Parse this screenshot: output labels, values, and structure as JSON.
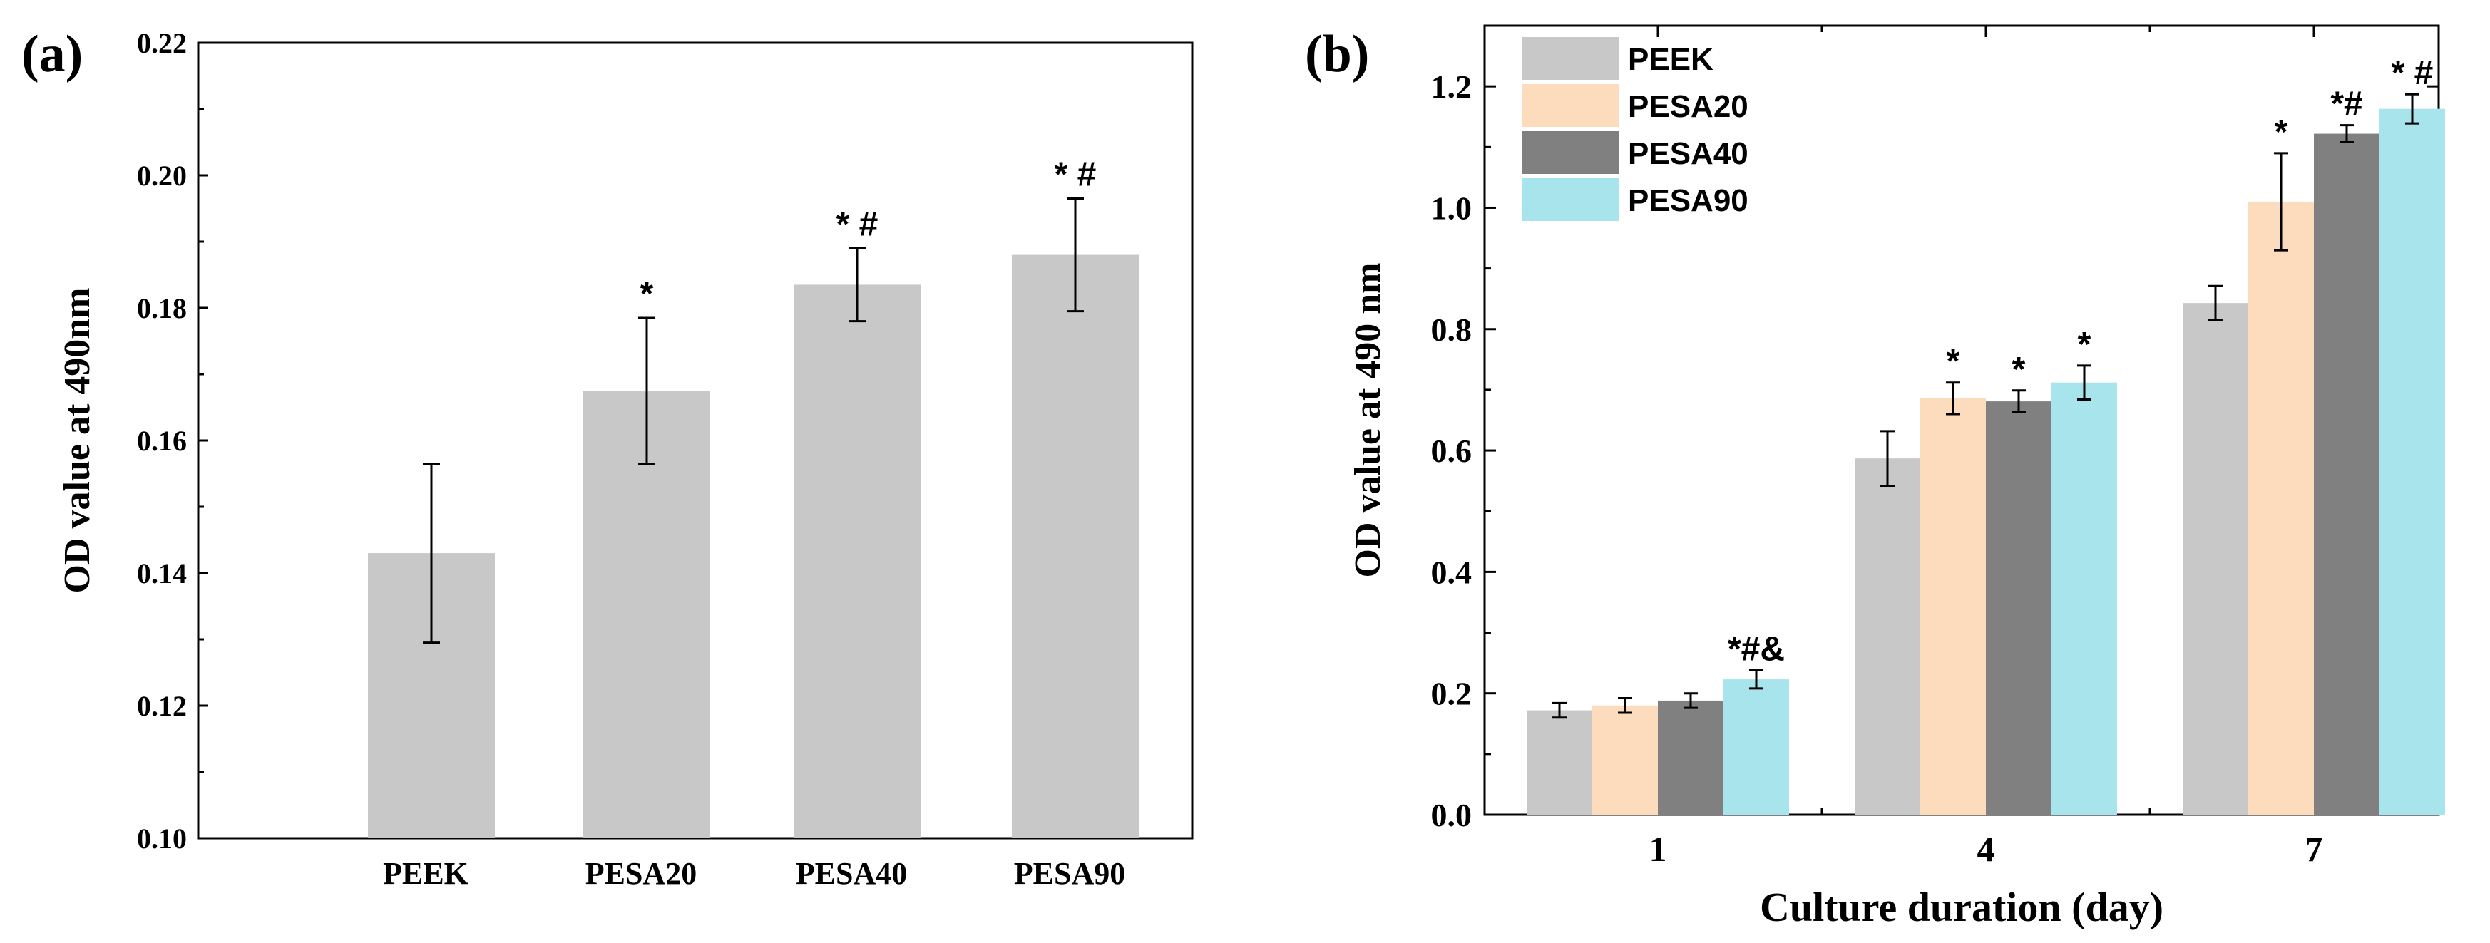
{
  "chart_data": [
    {
      "panel": "(a)",
      "type": "bar",
      "categories": [
        "PEEK",
        "PESA20",
        "PESA40",
        "PESA90"
      ],
      "values": [
        0.143,
        0.1675,
        0.1835,
        0.188
      ],
      "errors": [
        0.0135,
        0.011,
        0.0055,
        0.0085
      ],
      "annotations": [
        "",
        "*",
        "* #",
        "* #"
      ],
      "ylabel": "OD value at 490nm",
      "xlabel": "",
      "ylim": [
        0.1,
        0.22
      ],
      "yticks": [
        "0.10",
        "0.12",
        "0.14",
        "0.16",
        "0.18",
        "0.20",
        "0.22"
      ],
      "bar_color": "#c8c8c8"
    },
    {
      "panel": "(b)",
      "type": "bar",
      "categories": [
        "1",
        "4",
        "7"
      ],
      "series": [
        {
          "name": "PEEK",
          "color": "#c8c8c8",
          "values": [
            0.172,
            0.587,
            0.843
          ],
          "errors": [
            0.012,
            0.045,
            0.028
          ],
          "annotations": [
            "",
            "",
            ""
          ]
        },
        {
          "name": "PESA20",
          "color": "#fcdcbc",
          "values": [
            0.18,
            0.686,
            1.01
          ],
          "errors": [
            0.012,
            0.026,
            0.08
          ],
          "annotations": [
            "",
            "*",
            "*"
          ]
        },
        {
          "name": "PESA40",
          "color": "#808080",
          "values": [
            0.188,
            0.681,
            1.122
          ],
          "errors": [
            0.012,
            0.018,
            0.014
          ],
          "annotations": [
            "",
            "*",
            "*#"
          ]
        },
        {
          "name": "PESA90",
          "color": "#a8e4ec",
          "values": [
            0.223,
            0.712,
            1.163
          ],
          "errors": [
            0.015,
            0.028,
            0.024
          ],
          "annotations": [
            "*#&",
            "*",
            "* #"
          ]
        }
      ],
      "ylabel": "OD value at 490 nm",
      "xlabel": "Culture duration (day)",
      "ylim": [
        0.0,
        1.3
      ],
      "yticks": [
        "0.0",
        "0.2",
        "0.4",
        "0.6",
        "0.8",
        "1.0",
        "1.2"
      ],
      "legend": "top-left"
    }
  ]
}
